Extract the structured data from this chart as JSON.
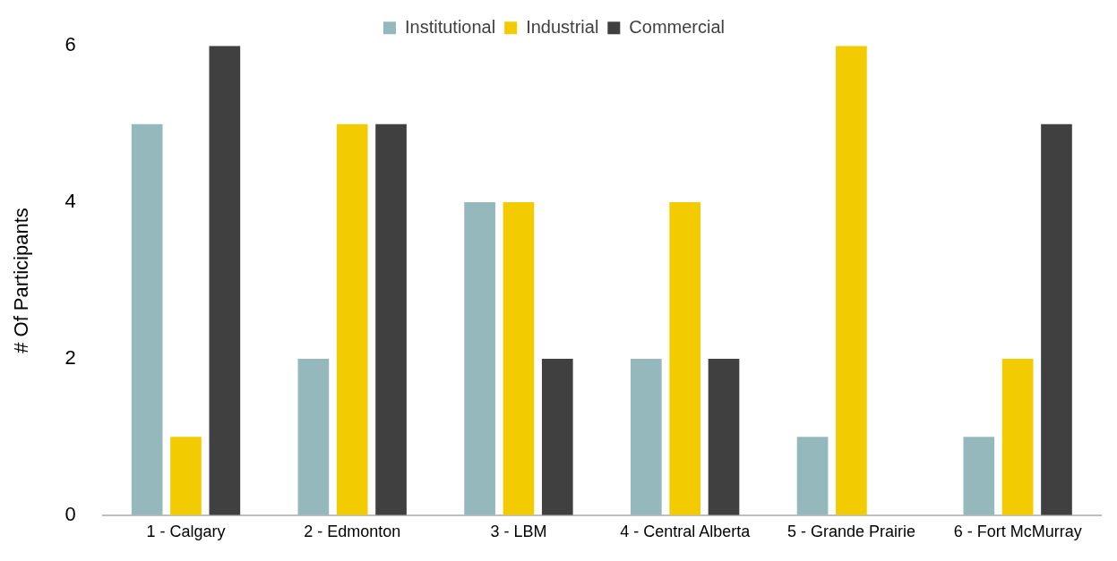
{
  "chart_data": {
    "type": "bar",
    "ylabel": "# Of Participants",
    "categories": [
      "1 - Calgary",
      "2 - Edmonton",
      "3 - LBM",
      "4 - Central Alberta",
      "5 - Grande Prairie",
      "6 - Fort McMurray"
    ],
    "series": [
      {
        "name": "Institutional",
        "color": "#95b8bd",
        "values": [
          5,
          2,
          4,
          2,
          1,
          1
        ]
      },
      {
        "name": "Industrial",
        "color": "#f2cc00",
        "values": [
          1,
          5,
          4,
          4,
          6,
          2
        ]
      },
      {
        "name": "Commercial",
        "color": "#404040",
        "values": [
          6,
          5,
          2,
          2,
          0,
          5
        ]
      }
    ],
    "ylim": [
      0,
      6
    ],
    "yticks": [
      0,
      2,
      4,
      6
    ],
    "grid": false,
    "legend": "top"
  }
}
